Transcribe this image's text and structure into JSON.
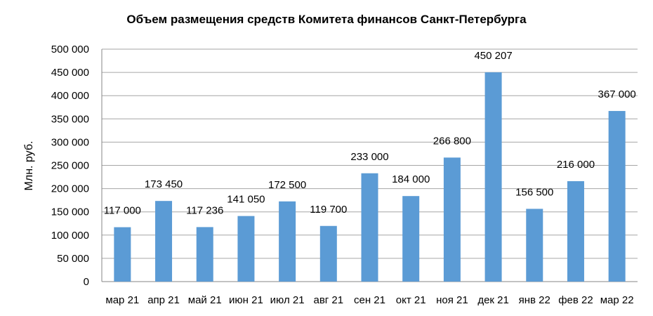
{
  "chart_data": {
    "type": "bar",
    "title": "Объем размещения  средств Комитета финансов Санкт-Петербурга",
    "xlabel": "",
    "ylabel": "Млн. руб.",
    "ylim": [
      0,
      500000
    ],
    "yticks": [
      0,
      50000,
      100000,
      150000,
      200000,
      250000,
      300000,
      350000,
      400000,
      450000,
      500000
    ],
    "ytick_labels": [
      "0",
      "50 000",
      "100 000",
      "150 000",
      "200 000",
      "250 000",
      "300 000",
      "350 000",
      "400 000",
      "450 000",
      "500 000"
    ],
    "grid": true,
    "legend": "none",
    "bar_color": "#5B9BD5",
    "categories": [
      "мар 21",
      "апр 21",
      "май 21",
      "июн 21",
      "июл 21",
      "авг 21",
      "сен 21",
      "окт 21",
      "ноя 21",
      "дек 21",
      "янв 22",
      "фев 22",
      "мар 22"
    ],
    "values": [
      117000,
      173450,
      117236,
      141050,
      172500,
      119700,
      233000,
      184000,
      266800,
      450207,
      156500,
      216000,
      367000
    ],
    "value_labels": [
      "117 000",
      "173 450",
      "117 236",
      "141 050",
      "172 500",
      "119 700",
      "233 000",
      "184 000",
      "266 800",
      "450 207",
      "156 500",
      "216 000",
      "367 000"
    ]
  }
}
